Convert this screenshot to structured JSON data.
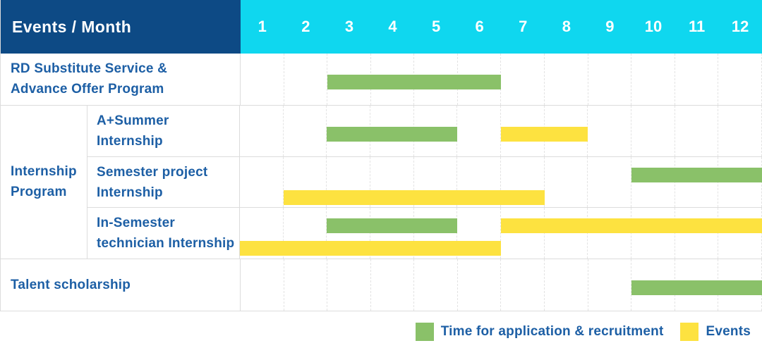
{
  "header": {
    "title": "Events / Month",
    "months": [
      "1",
      "2",
      "3",
      "4",
      "5",
      "6",
      "7",
      "8",
      "9",
      "10",
      "11",
      "12"
    ]
  },
  "colors": {
    "header_navy": "#0d4a85",
    "header_cyan": "#0fd7ef",
    "label_blue": "#1d5fa5",
    "application_green": "#8ac169",
    "event_yellow": "#fde240",
    "row_border": "#dcdcdc",
    "grid_line": "#e3e3e3"
  },
  "chart_data": {
    "type": "gantt",
    "title": "Events / Month",
    "x_unit": "month",
    "x_range": [
      1,
      12
    ],
    "grid": true,
    "legend_position": "bottom-right",
    "groups": [
      {
        "label": "Internship\nProgram",
        "row_indexes": [
          1,
          2,
          3
        ]
      }
    ],
    "rows": [
      {
        "event": "RD Substitute Service &\nAdvance Offer Program",
        "group": null,
        "segments": [
          {
            "kind": "application",
            "start_month": 3,
            "end_month": 6,
            "lane": "center"
          }
        ]
      },
      {
        "event": "A+Summer\nInternship",
        "group": "Internship Program",
        "segments": [
          {
            "kind": "application",
            "start_month": 3,
            "end_month": 5,
            "lane": "center"
          },
          {
            "kind": "event",
            "start_month": 7,
            "end_month": 8,
            "lane": "center"
          }
        ]
      },
      {
        "event": "Semester project\nInternship",
        "group": "Internship Program",
        "segments": [
          {
            "kind": "application",
            "start_month": 10,
            "end_month": 12,
            "lane": "top"
          },
          {
            "kind": "event",
            "start_month": 2,
            "end_month": 7,
            "lane": "bottom"
          }
        ]
      },
      {
        "event": "In-Semester\ntechnician Internship",
        "group": "Internship Program",
        "segments": [
          {
            "kind": "application",
            "start_month": 3,
            "end_month": 5,
            "lane": "top"
          },
          {
            "kind": "event",
            "start_month": 7,
            "end_month": 12,
            "lane": "top"
          },
          {
            "kind": "event",
            "start_month": 1,
            "end_month": 6,
            "lane": "bottom"
          }
        ]
      },
      {
        "event": "Talent scholarship",
        "group": null,
        "segments": [
          {
            "kind": "application",
            "start_month": 10,
            "end_month": 12,
            "lane": "center"
          }
        ]
      }
    ],
    "legend": [
      {
        "label": "Time for application & recruitment",
        "kind": "application",
        "color": "#8ac169"
      },
      {
        "label": "Events",
        "kind": "event",
        "color": "#fde240"
      }
    ]
  }
}
